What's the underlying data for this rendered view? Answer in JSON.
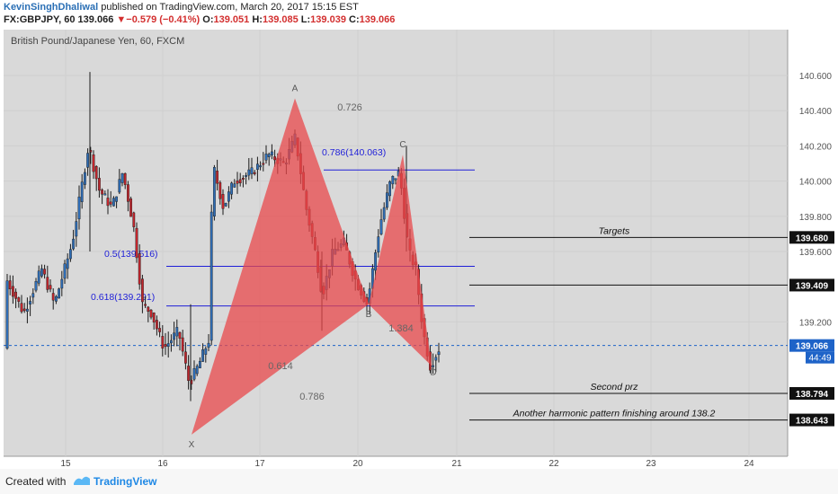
{
  "header": {
    "author": "KevinSinghDhaliwal",
    "published": "published on TradingView.com, March 20, 2017 15:15 EST",
    "symbol": "FX:GBPJPY, 60",
    "last": "139.066",
    "change_arrow": "▼",
    "change": "−0.579 (−0.41%)",
    "o_label": "O:",
    "o_value": "139.051",
    "h_label": "H:",
    "h_value": "139.085",
    "l_label": "L:",
    "l_value": "139.039",
    "c_label": "C:",
    "c_value": "139.066"
  },
  "footer": {
    "created": "Created with",
    "brand": "TradingView"
  },
  "colors": {
    "up": "#2f6db5",
    "down": "#c0262d",
    "pattern": "#e8484b",
    "fib": "#1f1fd8",
    "current": "#1e63c8",
    "plot_bg": "#d9d9d9",
    "axis_bg": "#ffffff"
  },
  "chart_data": {
    "type": "candlestick",
    "title": "British Pound/Japanese Yen, 60, FXCM",
    "ylim": [
      138.5,
      140.7
    ],
    "x_ticks": [
      "15",
      "16",
      "17",
      "20",
      "21",
      "22",
      "23",
      "24"
    ],
    "y_ticks": [
      "140.600",
      "140.400",
      "140.200",
      "140.000",
      "139.800",
      "139.600",
      "139.200"
    ],
    "price_tags": [
      {
        "label": "139.680",
        "value": 139.68
      },
      {
        "label": "139.409",
        "value": 139.409
      },
      {
        "label": "139.066",
        "value": 139.066,
        "current": true
      },
      {
        "label": "138.794",
        "value": 138.794
      },
      {
        "label": "138.643",
        "value": 138.643
      }
    ],
    "countdown": "44:49",
    "current_price": 139.066,
    "pattern_points": [
      {
        "label": "X",
        "price": 138.56
      },
      {
        "label": "A",
        "price": 140.47
      },
      {
        "label": "B",
        "price": 139.3
      },
      {
        "label": "C",
        "price": 140.15
      },
      {
        "label": "D",
        "price": 138.95
      }
    ],
    "ratios": [
      "0.726",
      "0.614",
      "0.786",
      "1.384"
    ],
    "fib_levels": [
      {
        "label": "0.786(140.063)",
        "value": 140.063
      },
      {
        "label": "0.5(139.516)",
        "value": 139.516
      },
      {
        "label": "0.618(139.291)",
        "value": 139.291
      }
    ],
    "target_lines": [
      {
        "label": "Targets",
        "value": 139.68
      },
      {
        "label": "",
        "value": 139.409
      },
      {
        "label": "Second prz",
        "value": 138.794
      },
      {
        "label": "Another harmonic pattern finishing around 138.2",
        "value": 138.643
      }
    ]
  }
}
